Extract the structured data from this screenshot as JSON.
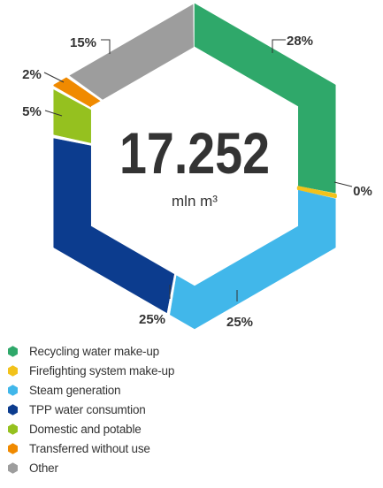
{
  "chart_data": {
    "type": "donut",
    "shape": "hexagon",
    "center": {
      "value": "17.252",
      "unit": "mln m³"
    },
    "series": [
      {
        "name": "Recycling water make-up",
        "percent": 28,
        "label": "28%",
        "color": "#2fa86a"
      },
      {
        "name": "Firefighting system make-up",
        "percent": 0.2,
        "label": "0%",
        "color": "#f2c21b"
      },
      {
        "name": "Steam generation",
        "percent": 25,
        "label": "25%",
        "color": "#41b7ea"
      },
      {
        "name": "TPP water consumtion",
        "percent": 25,
        "label": "25%",
        "color": "#0c3c8e"
      },
      {
        "name": "Domestic and potable",
        "percent": 5,
        "label": "5%",
        "color": "#95c11f"
      },
      {
        "name": "Transferred without use",
        "percent": 2,
        "label": "2%",
        "color": "#f08a00"
      },
      {
        "name": "Other",
        "percent": 15,
        "label": "15%",
        "color": "#9d9d9d"
      }
    ]
  }
}
